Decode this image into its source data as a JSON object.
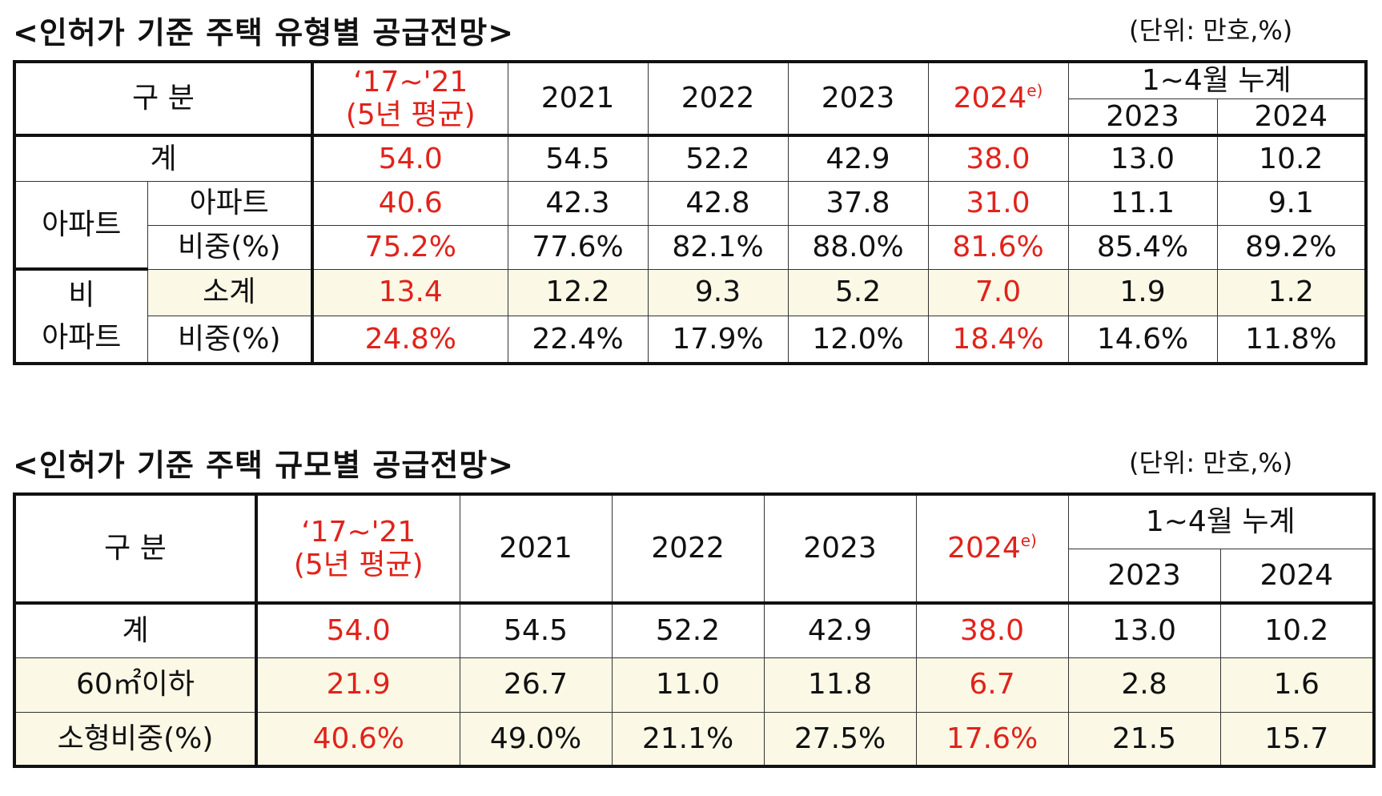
{
  "table1": {
    "title": "<인허가 기준 주택 유형별 공급전망>",
    "unit": "(단위: 만호,%)",
    "header": {
      "category": "구 분",
      "avg_line1": "‘17~'21",
      "avg_line2": "(5년 평균)",
      "y2021": "2021",
      "y2022": "2022",
      "y2023": "2023",
      "y2024": "2024",
      "y2024_note": "e)",
      "cumulative": "1~4월 누계",
      "cum_2023": "2023",
      "cum_2024": "2024"
    },
    "rows": {
      "total": {
        "label": "계",
        "values": [
          "54.0",
          "54.5",
          "52.2",
          "42.9",
          "38.0",
          "13.0",
          "10.2"
        ]
      },
      "apt_group": "아파트",
      "apt": {
        "label": "아파트",
        "values": [
          "40.6",
          "42.3",
          "42.8",
          "37.8",
          "31.0",
          "11.1",
          "9.1"
        ]
      },
      "apt_share": {
        "label": "비중(%)",
        "values": [
          "75.2%",
          "77.6%",
          "82.1%",
          "88.0%",
          "81.6%",
          "85.4%",
          "89.2%"
        ]
      },
      "nonapt_group_line1": "비",
      "nonapt_group_line2": "아파트",
      "nonapt_subtotal": {
        "label": "소계",
        "values": [
          "13.4",
          "12.2",
          "9.3",
          "5.2",
          "7.0",
          "1.9",
          "1.2"
        ]
      },
      "nonapt_share": {
        "label": "비중(%)",
        "values": [
          "24.8%",
          "22.4%",
          "17.9%",
          "12.0%",
          "18.4%",
          "14.6%",
          "11.8%"
        ]
      }
    }
  },
  "table2": {
    "title": "<인허가 기준 주택 규모별 공급전망>",
    "unit": "(단위: 만호,%)",
    "header": {
      "category": "구 분",
      "avg_line1": "‘17~'21",
      "avg_line2": "(5년 평균)",
      "y2021": "2021",
      "y2022": "2022",
      "y2023": "2023",
      "y2024": "2024",
      "y2024_note": "e)",
      "cumulative": "1~4월 누계",
      "cum_2023": "2023",
      "cum_2024": "2024"
    },
    "rows": {
      "total": {
        "label": "계",
        "values": [
          "54.0",
          "54.5",
          "52.2",
          "42.9",
          "38.0",
          "13.0",
          "10.2"
        ]
      },
      "small": {
        "label": "60㎡이하",
        "values": [
          "21.9",
          "26.7",
          "11.0",
          "11.8",
          "6.7",
          "2.8",
          "1.6"
        ]
      },
      "small_share": {
        "label": "소형비중(%)",
        "values": [
          "40.6%",
          "49.0%",
          "21.1%",
          "27.5%",
          "17.6%",
          "21.5",
          "15.7"
        ]
      }
    }
  },
  "colors": {
    "highlight_text": "#e0231b",
    "beige_fill": "#fbf8e6",
    "border": "#111111"
  }
}
